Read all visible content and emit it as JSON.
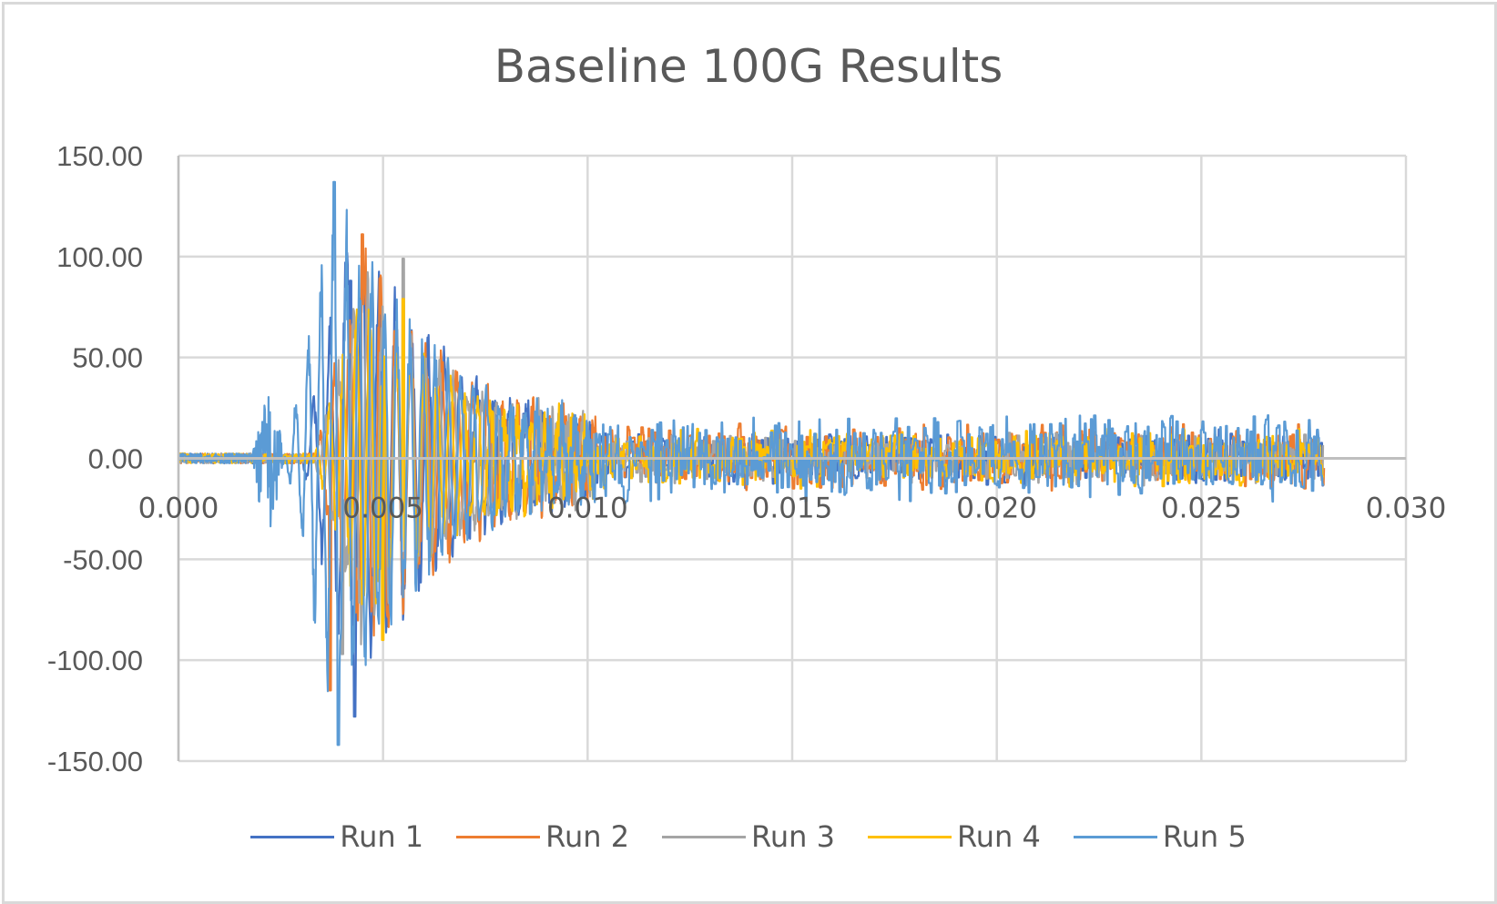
{
  "chart_data": {
    "type": "line",
    "title": "Baseline 100G Results",
    "xlabel": "",
    "ylabel": "",
    "xlim": [
      0,
      0.03
    ],
    "ylim": [
      -150,
      150
    ],
    "x_ticks": [
      "0.000",
      "0.005",
      "0.010",
      "0.015",
      "0.020",
      "0.025",
      "0.030"
    ],
    "y_ticks": [
      "150.00",
      "100.00",
      "50.00",
      "0.00",
      "-50.00",
      "-100.00",
      "-150.00"
    ],
    "grid": true,
    "legend_position": "bottom",
    "x_data_range": [
      0,
      0.028
    ],
    "series": [
      {
        "name": "Run 1",
        "color": "#4472C4",
        "onset": 0.003,
        "peak_max": 88,
        "peak_min": -128,
        "peak_max_x": 0.0042,
        "peak_min_x": 0.0043,
        "late_amplitude": 15
      },
      {
        "name": "Run 2",
        "color": "#ED7D31",
        "onset": 0.0033,
        "peak_max": 111,
        "peak_min": -115,
        "peak_max_x": 0.0045,
        "peak_min_x": 0.0037,
        "late_amplitude": 18
      },
      {
        "name": "Run 3",
        "color": "#A5A5A5",
        "onset": 0.0033,
        "peak_max": 99,
        "peak_min": -97,
        "peak_max_x": 0.0055,
        "peak_min_x": 0.004,
        "late_amplitude": 14
      },
      {
        "name": "Run 4",
        "color": "#FFC000",
        "onset": 0.0033,
        "peak_max": 79,
        "peak_min": -90,
        "peak_max_x": 0.0055,
        "peak_min_x": 0.005,
        "late_amplitude": 16
      },
      {
        "name": "Run 5",
        "color": "#5B9BD5",
        "onset": 0.0026,
        "peak_max": 137,
        "peak_min": -142,
        "peak_max_x": 0.0038,
        "peak_min_x": 0.0039,
        "late_amplitude": 25
      }
    ]
  },
  "legend": [
    {
      "label": "Run 1",
      "color": "#4472C4"
    },
    {
      "label": "Run 2",
      "color": "#ED7D31"
    },
    {
      "label": "Run 3",
      "color": "#A5A5A5"
    },
    {
      "label": "Run 4",
      "color": "#FFC000"
    },
    {
      "label": "Run 5",
      "color": "#5B9BD5"
    }
  ]
}
